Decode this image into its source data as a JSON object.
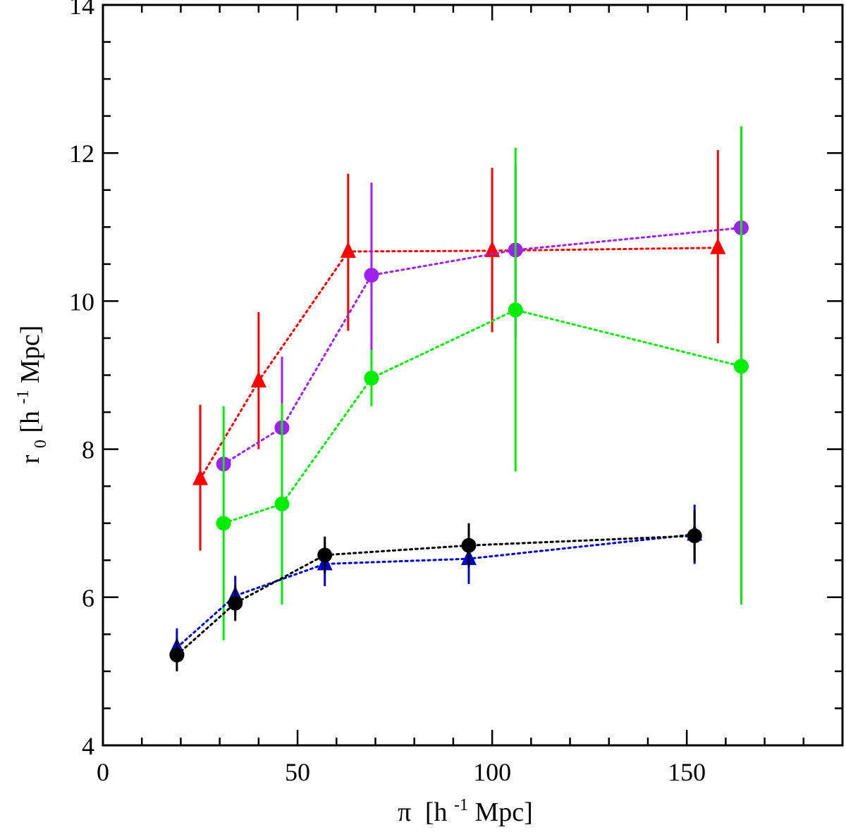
{
  "chart_data": {
    "type": "scatter",
    "title": "",
    "xlabel": {
      "symbol": "π",
      "unit": "[h",
      "exponent": "-1",
      "unit_rest": " Mpc]"
    },
    "ylabel": {
      "symbol": "r",
      "subscript": "0",
      "unit": " [h",
      "exponent": "-1",
      "unit_rest": " Mpc]"
    },
    "xlim": [
      0,
      190
    ],
    "ylim": [
      4,
      14
    ],
    "xticks": [
      0,
      50,
      100,
      150
    ],
    "xtick_labels": [
      "0",
      "50",
      "100",
      "150"
    ],
    "yticks": [
      4,
      6,
      8,
      10,
      12,
      14
    ],
    "ytick_labels": [
      "4",
      "6",
      "8",
      "10",
      "12",
      "14"
    ],
    "x_minor_step": 10,
    "y_minor_step": 0.5,
    "grid": false,
    "series": [
      {
        "name": "red triangles",
        "color": "#ff0000",
        "marker": "triangle",
        "line": "dotted",
        "points": [
          {
            "x": 25,
            "y": 7.6,
            "lo": 6.63,
            "hi": 8.6
          },
          {
            "x": 40,
            "y": 8.92,
            "lo": 8.0,
            "hi": 9.85
          },
          {
            "x": 63,
            "y": 10.67,
            "lo": 9.6,
            "hi": 11.72
          },
          {
            "x": 100,
            "y": 10.68,
            "lo": 9.58,
            "hi": 11.8
          },
          {
            "x": 158,
            "y": 10.72,
            "lo": 9.43,
            "hi": 12.04
          }
        ]
      },
      {
        "name": "purple circles",
        "color": "#a020f0",
        "marker": "circle",
        "line": "dotted",
        "points": [
          {
            "x": 31,
            "y": 7.8,
            "lo": 7.8,
            "hi": 7.8
          },
          {
            "x": 46,
            "y": 8.29,
            "lo": 7.34,
            "hi": 9.25
          },
          {
            "x": 69,
            "y": 10.35,
            "lo": 9.1,
            "hi": 11.6
          },
          {
            "x": 106,
            "y": 10.69,
            "lo": 9.5,
            "hi": 11.85
          },
          {
            "x": 164,
            "y": 10.99,
            "lo": 9.7,
            "hi": 12.3
          }
        ]
      },
      {
        "name": "green circles",
        "color": "#00ee00",
        "marker": "circle",
        "line": "dotted",
        "points": [
          {
            "x": 31,
            "y": 7.0,
            "lo": 5.42,
            "hi": 8.58
          },
          {
            "x": 46,
            "y": 7.26,
            "lo": 5.9,
            "hi": 8.62
          },
          {
            "x": 69,
            "y": 8.96,
            "lo": 8.58,
            "hi": 9.34
          },
          {
            "x": 106,
            "y": 9.88,
            "lo": 7.7,
            "hi": 12.07
          },
          {
            "x": 164,
            "y": 9.12,
            "lo": 5.9,
            "hi": 12.36
          }
        ]
      },
      {
        "name": "blue triangles",
        "color": "#0000cd",
        "marker": "triangle",
        "line": "dotted",
        "points": [
          {
            "x": 19,
            "y": 5.32,
            "lo": 5.12,
            "hi": 5.58
          },
          {
            "x": 34,
            "y": 6.02,
            "lo": 5.76,
            "hi": 6.29
          },
          {
            "x": 57,
            "y": 6.45,
            "lo": 6.15,
            "hi": 6.75
          },
          {
            "x": 94,
            "y": 6.52,
            "lo": 6.18,
            "hi": 6.85
          },
          {
            "x": 152,
            "y": 6.85,
            "lo": 6.45,
            "hi": 7.25
          }
        ]
      },
      {
        "name": "black circles",
        "color": "#000000",
        "marker": "circle",
        "line": "dotted",
        "points": [
          {
            "x": 19,
            "y": 5.22,
            "lo": 5.0,
            "hi": 5.44
          },
          {
            "x": 34,
            "y": 5.92,
            "lo": 5.68,
            "hi": 6.16
          },
          {
            "x": 57,
            "y": 6.57,
            "lo": 6.32,
            "hi": 6.82
          },
          {
            "x": 94,
            "y": 6.7,
            "lo": 6.4,
            "hi": 7.0
          },
          {
            "x": 152,
            "y": 6.83,
            "lo": 6.48,
            "hi": 7.18
          }
        ]
      }
    ]
  }
}
